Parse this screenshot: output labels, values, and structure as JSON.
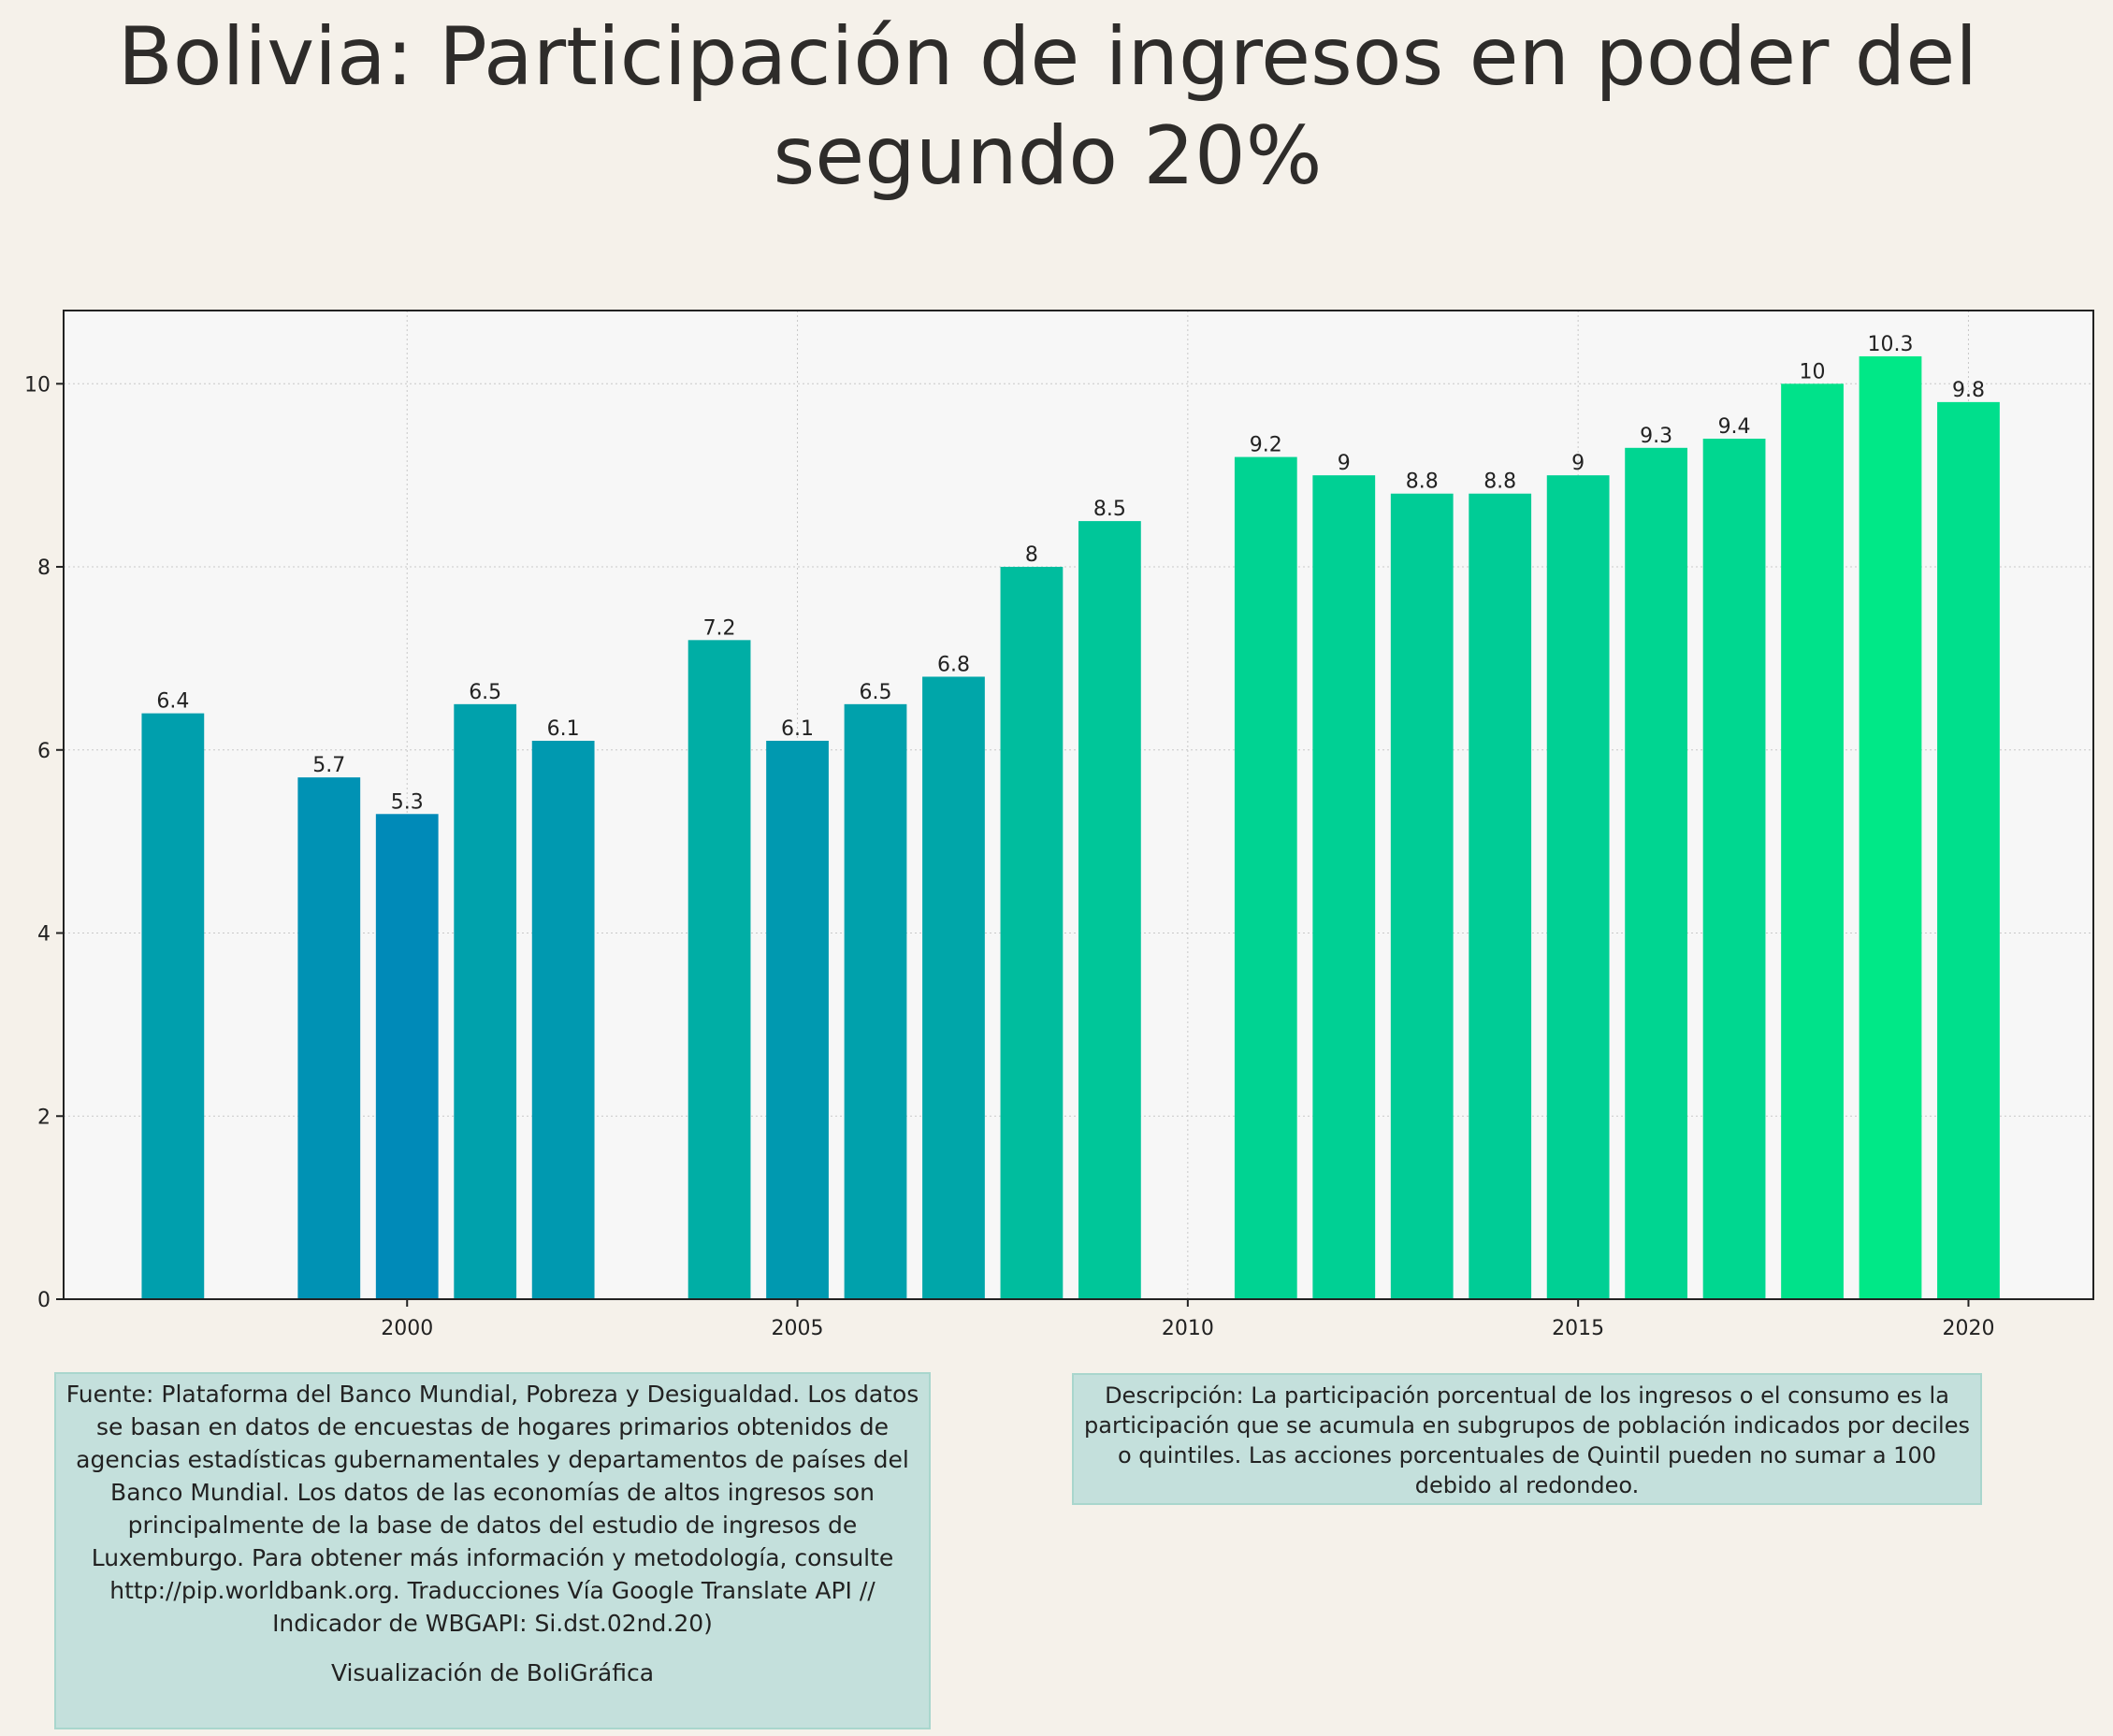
{
  "title": "Bolivia:  Participación de ingresos en poder del segundo 20%",
  "chart_data": {
    "type": "bar",
    "x": [
      1997,
      1999,
      2000,
      2001,
      2002,
      2004,
      2005,
      2006,
      2007,
      2008,
      2009,
      2011,
      2012,
      2013,
      2014,
      2015,
      2016,
      2017,
      2018,
      2019,
      2020
    ],
    "values": [
      6.4,
      5.7,
      5.3,
      6.5,
      6.1,
      7.2,
      6.1,
      6.5,
      6.8,
      8,
      8.5,
      9.2,
      9,
      8.8,
      8.8,
      9,
      9.3,
      9.4,
      10,
      10.3,
      9.8
    ],
    "value_labels": [
      "6.4",
      "5.7",
      "5.3",
      "6.5",
      "6.1",
      "7.2",
      "6.1",
      "6.5",
      "6.8",
      "8",
      "8.5",
      "9.2",
      "9",
      "8.8",
      "8.8",
      "9",
      "9.3",
      "9.4",
      "10",
      "10.3",
      "9.8"
    ],
    "x_ticks": [
      2000,
      2005,
      2010,
      2015,
      2020
    ],
    "x_tick_labels": [
      "2000",
      "2005",
      "2010",
      "2015",
      "2020"
    ],
    "y_ticks": [
      0,
      2,
      4,
      6,
      8,
      10
    ],
    "y_tick_labels": [
      "0",
      "2",
      "4",
      "6",
      "8",
      "10"
    ],
    "xlim": [
      1995.6,
      2021.6
    ],
    "ylim": [
      0,
      10.8
    ],
    "grid": true,
    "color_low": "#008ab8",
    "color_high": "#00e887"
  },
  "source_text": "Fuente: Plataforma del Banco Mundial, Pobreza y Desigualdad. Los datos se basan en datos de encuestas de hogares primarios obtenidos de agencias estadísticas gubernamentales y departamentos de países del Banco Mundial. Los datos de las economías de altos ingresos son principalmente de la base de datos del estudio de ingresos de Luxemburgo. Para obtener más información y metodología, consulte http://pip.worldbank.org. Traducciones Vía Google Translate API // Indicador de WBGAPI: Si.dst.02nd.20)",
  "source_credit": "Visualización de BoliGráfica",
  "description_text": "Descripción: La participación porcentual de los ingresos o el consumo es la participación que se acumula en subgrupos de población indicados por deciles o quintiles. Las acciones porcentuales de Quintil pueden no sumar a 100 debido al redondeo."
}
